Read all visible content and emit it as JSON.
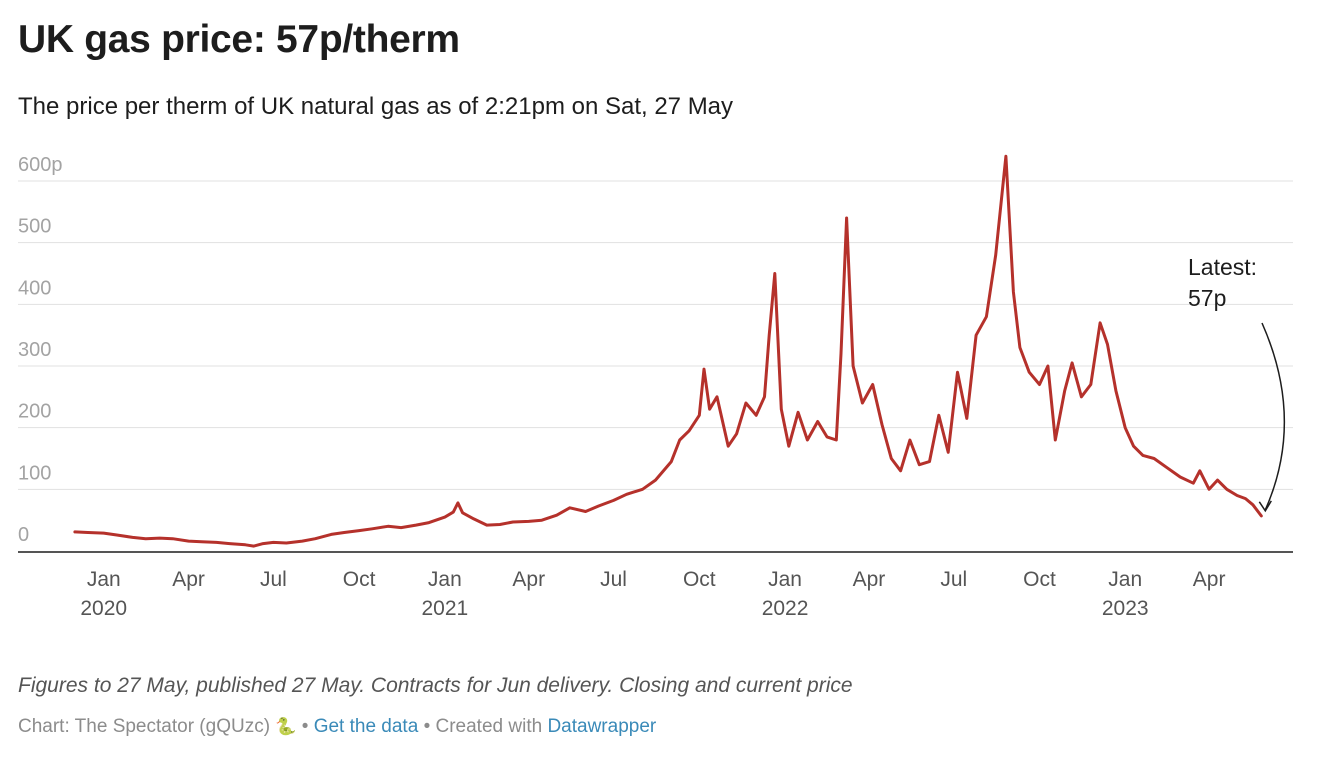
{
  "header": {
    "title": "UK gas price: 57p/therm",
    "subtitle": "The price per therm of UK natural gas as of 2:21pm on Sat, 27 May"
  },
  "chart_data": {
    "type": "line",
    "title": "UK gas price: 57p/therm",
    "subtitle": "The price per therm of UK natural gas as of 2:21pm on Sat, 27 May",
    "xlabel": "",
    "ylabel": "",
    "y_unit_suffix": "p",
    "ylim": [
      0,
      600
    ],
    "y_ticks": [
      0,
      100,
      200,
      300,
      400,
      500,
      600
    ],
    "y_tick_labels": [
      "0",
      "100",
      "200",
      "300",
      "400",
      "500",
      "600p"
    ],
    "xlim": [
      "2019-10-01",
      "2023-06-30"
    ],
    "x_ticks": [
      {
        "date": "2020-01-01",
        "label": "Jan",
        "year": "2020"
      },
      {
        "date": "2020-04-01",
        "label": "Apr",
        "year": ""
      },
      {
        "date": "2020-07-01",
        "label": "Jul",
        "year": ""
      },
      {
        "date": "2020-10-01",
        "label": "Oct",
        "year": ""
      },
      {
        "date": "2021-01-01",
        "label": "Jan",
        "year": "2021"
      },
      {
        "date": "2021-04-01",
        "label": "Apr",
        "year": ""
      },
      {
        "date": "2021-07-01",
        "label": "Jul",
        "year": ""
      },
      {
        "date": "2021-10-01",
        "label": "Oct",
        "year": ""
      },
      {
        "date": "2022-01-01",
        "label": "Jan",
        "year": "2022"
      },
      {
        "date": "2022-04-01",
        "label": "Apr",
        "year": ""
      },
      {
        "date": "2022-07-01",
        "label": "Jul",
        "year": ""
      },
      {
        "date": "2022-10-01",
        "label": "Oct",
        "year": ""
      },
      {
        "date": "2023-01-01",
        "label": "Jan",
        "year": "2023"
      },
      {
        "date": "2023-04-01",
        "label": "Apr",
        "year": ""
      }
    ],
    "grid": true,
    "legend": "none",
    "series": [
      {
        "name": "UK natural gas price (p/therm)",
        "color": "#b5312b",
        "points": [
          [
            "2019-12-01",
            31
          ],
          [
            "2019-12-15",
            30
          ],
          [
            "2020-01-01",
            29
          ],
          [
            "2020-01-15",
            26
          ],
          [
            "2020-02-01",
            22
          ],
          [
            "2020-02-15",
            20
          ],
          [
            "2020-03-01",
            21
          ],
          [
            "2020-03-15",
            20
          ],
          [
            "2020-04-01",
            16
          ],
          [
            "2020-04-15",
            15
          ],
          [
            "2020-05-01",
            14
          ],
          [
            "2020-05-15",
            12
          ],
          [
            "2020-06-01",
            10
          ],
          [
            "2020-06-10",
            8
          ],
          [
            "2020-06-20",
            12
          ],
          [
            "2020-07-01",
            14
          ],
          [
            "2020-07-15",
            13
          ],
          [
            "2020-08-01",
            16
          ],
          [
            "2020-08-15",
            20
          ],
          [
            "2020-09-01",
            27
          ],
          [
            "2020-09-15",
            30
          ],
          [
            "2020-10-01",
            33
          ],
          [
            "2020-10-15",
            36
          ],
          [
            "2020-11-01",
            40
          ],
          [
            "2020-11-15",
            38
          ],
          [
            "2020-12-01",
            42
          ],
          [
            "2020-12-15",
            46
          ],
          [
            "2021-01-01",
            55
          ],
          [
            "2021-01-10",
            63
          ],
          [
            "2021-01-15",
            78
          ],
          [
            "2021-01-20",
            62
          ],
          [
            "2021-02-01",
            52
          ],
          [
            "2021-02-15",
            42
          ],
          [
            "2021-03-01",
            43
          ],
          [
            "2021-03-15",
            47
          ],
          [
            "2021-04-01",
            48
          ],
          [
            "2021-04-15",
            50
          ],
          [
            "2021-05-01",
            58
          ],
          [
            "2021-05-15",
            70
          ],
          [
            "2021-06-01",
            64
          ],
          [
            "2021-06-15",
            73
          ],
          [
            "2021-07-01",
            82
          ],
          [
            "2021-07-15",
            92
          ],
          [
            "2021-08-01",
            100
          ],
          [
            "2021-08-15",
            115
          ],
          [
            "2021-09-01",
            145
          ],
          [
            "2021-09-10",
            180
          ],
          [
            "2021-09-20",
            195
          ],
          [
            "2021-10-01",
            220
          ],
          [
            "2021-10-06",
            295
          ],
          [
            "2021-10-12",
            230
          ],
          [
            "2021-10-20",
            250
          ],
          [
            "2021-11-01",
            170
          ],
          [
            "2021-11-10",
            190
          ],
          [
            "2021-11-20",
            240
          ],
          [
            "2021-12-01",
            220
          ],
          [
            "2021-12-10",
            250
          ],
          [
            "2021-12-15",
            350
          ],
          [
            "2021-12-21",
            450
          ],
          [
            "2021-12-28",
            230
          ],
          [
            "2022-01-05",
            170
          ],
          [
            "2022-01-15",
            225
          ],
          [
            "2022-01-25",
            180
          ],
          [
            "2022-02-05",
            210
          ],
          [
            "2022-02-15",
            185
          ],
          [
            "2022-02-25",
            180
          ],
          [
            "2022-03-02",
            320
          ],
          [
            "2022-03-08",
            540
          ],
          [
            "2022-03-15",
            300
          ],
          [
            "2022-03-25",
            240
          ],
          [
            "2022-04-05",
            270
          ],
          [
            "2022-04-15",
            205
          ],
          [
            "2022-04-25",
            150
          ],
          [
            "2022-05-05",
            130
          ],
          [
            "2022-05-15",
            180
          ],
          [
            "2022-05-25",
            140
          ],
          [
            "2022-06-05",
            145
          ],
          [
            "2022-06-15",
            220
          ],
          [
            "2022-06-25",
            160
          ],
          [
            "2022-07-05",
            290
          ],
          [
            "2022-07-15",
            215
          ],
          [
            "2022-07-25",
            350
          ],
          [
            "2022-08-05",
            380
          ],
          [
            "2022-08-15",
            480
          ],
          [
            "2022-08-26",
            640
          ],
          [
            "2022-09-03",
            420
          ],
          [
            "2022-09-10",
            330
          ],
          [
            "2022-09-20",
            290
          ],
          [
            "2022-10-01",
            270
          ],
          [
            "2022-10-10",
            300
          ],
          [
            "2022-10-18",
            180
          ],
          [
            "2022-10-28",
            260
          ],
          [
            "2022-11-05",
            305
          ],
          [
            "2022-11-15",
            250
          ],
          [
            "2022-11-25",
            270
          ],
          [
            "2022-12-05",
            370
          ],
          [
            "2022-12-13",
            335
          ],
          [
            "2022-12-22",
            260
          ],
          [
            "2023-01-01",
            200
          ],
          [
            "2023-01-10",
            170
          ],
          [
            "2023-01-20",
            155
          ],
          [
            "2023-02-01",
            150
          ],
          [
            "2023-02-15",
            135
          ],
          [
            "2023-03-01",
            120
          ],
          [
            "2023-03-15",
            110
          ],
          [
            "2023-03-22",
            130
          ],
          [
            "2023-04-01",
            100
          ],
          [
            "2023-04-10",
            115
          ],
          [
            "2023-04-20",
            100
          ],
          [
            "2023-05-01",
            90
          ],
          [
            "2023-05-10",
            85
          ],
          [
            "2023-05-18",
            75
          ],
          [
            "2023-05-27",
            57
          ]
        ]
      }
    ],
    "annotations": [
      {
        "lines": [
          "Latest:",
          "57p"
        ],
        "target": {
          "date": "2023-05-27",
          "value": 57
        }
      }
    ],
    "notes": "Figures to 27 May, published 27 May. Contracts for Jun delivery. Closing and current price"
  },
  "footer": {
    "chart_prefix": "Chart: The Spectator (gQUzc)",
    "snake_glyph": "🐍",
    "separator": "•",
    "get_data_link": "Get the data",
    "created_with": "Created with",
    "tool_link": "Datawrapper"
  }
}
